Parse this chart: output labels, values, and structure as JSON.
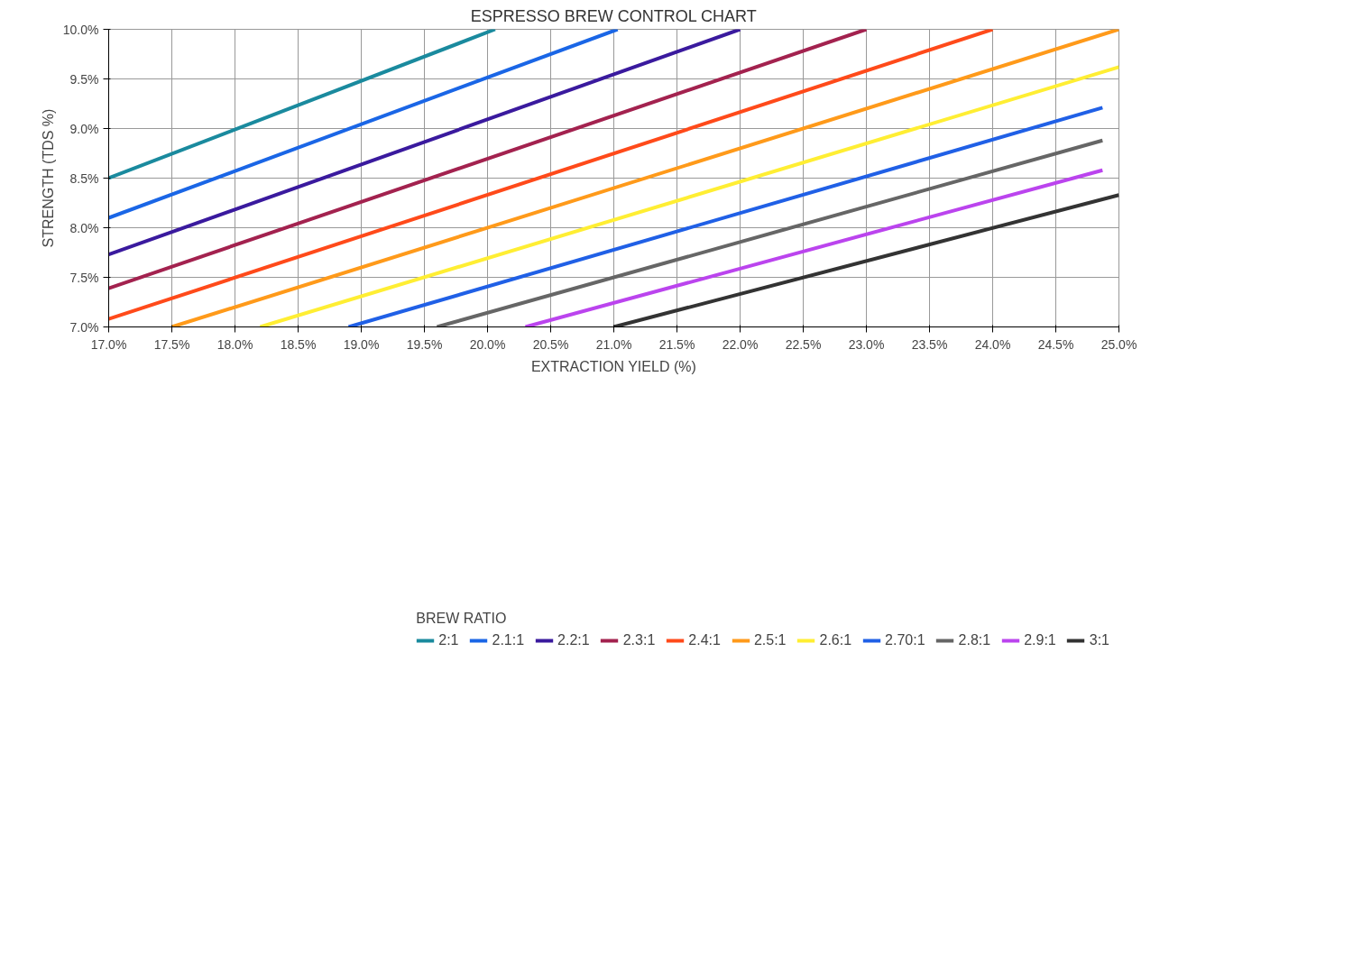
{
  "chart_data": {
    "type": "line",
    "title": "ESPRESSO BREW CONTROL CHART",
    "xlabel": "EXTRACTION YIELD (%)",
    "ylabel": "STRENGTH (TDS %)",
    "legend_title": "BREW RATIO",
    "legend": "bottom",
    "grid": true,
    "marker": "none",
    "line_style": "solid",
    "xlim": [
      17,
      25
    ],
    "ylim": [
      7,
      10
    ],
    "xticks": [
      {
        "value": 17,
        "label": "17.0%"
      },
      {
        "value": 17.5,
        "label": "17.5%"
      },
      {
        "value": 18,
        "label": "18.0%"
      },
      {
        "value": 18.5,
        "label": "18.5%"
      },
      {
        "value": 19,
        "label": "19.0%"
      },
      {
        "value": 19.5,
        "label": "19.5%"
      },
      {
        "value": 20,
        "label": "20.0%"
      },
      {
        "value": 20.5,
        "label": "20.5%"
      },
      {
        "value": 21,
        "label": "21.0%"
      },
      {
        "value": 21.5,
        "label": "21.5%"
      },
      {
        "value": 22,
        "label": "22.0%"
      },
      {
        "value": 22.5,
        "label": "22.5%"
      },
      {
        "value": 23,
        "label": "23.0%"
      },
      {
        "value": 23.5,
        "label": "23.5%"
      },
      {
        "value": 24,
        "label": "24.0%"
      },
      {
        "value": 24.5,
        "label": "24.5%"
      },
      {
        "value": 25,
        "label": "25.0%"
      }
    ],
    "yticks": [
      {
        "value": 7,
        "label": "7.0%"
      },
      {
        "value": 7.5,
        "label": "7.5%"
      },
      {
        "value": 8,
        "label": "8.0%"
      },
      {
        "value": 8.5,
        "label": "8.5%"
      },
      {
        "value": 9,
        "label": "9.0%"
      },
      {
        "value": 9.5,
        "label": "9.5%"
      },
      {
        "value": 10,
        "label": "10.0%"
      }
    ],
    "series": [
      {
        "name": "2:1",
        "color": "#1a8a9e",
        "x": [
          17,
          20.06
        ],
        "values": [
          8.5,
          10
        ]
      },
      {
        "name": "2.1:1",
        "color": "#1a66e6",
        "x": [
          17,
          21.03
        ],
        "values": [
          8.1,
          10
        ]
      },
      {
        "name": "2.2:1",
        "color": "#3a1a9e",
        "x": [
          17,
          22
        ],
        "values": [
          7.73,
          10
        ]
      },
      {
        "name": "2.3:1",
        "color": "#a3224f",
        "x": [
          17,
          23
        ],
        "values": [
          7.39,
          10
        ]
      },
      {
        "name": "2.4:1",
        "color": "#ff4a1a",
        "x": [
          17,
          24
        ],
        "values": [
          7.08,
          10
        ]
      },
      {
        "name": "2.5:1",
        "color": "#ff9a1a",
        "x": [
          17.5,
          25
        ],
        "values": [
          7,
          10
        ]
      },
      {
        "name": "2.6:1",
        "color": "#ffee33",
        "x": [
          18.2,
          25
        ],
        "values": [
          7,
          9.62
        ]
      },
      {
        "name": "2.70:1",
        "color": "#2060e6",
        "x": [
          18.9,
          24.87
        ],
        "values": [
          7,
          9.21
        ]
      },
      {
        "name": "2.8:1",
        "color": "#666666",
        "x": [
          19.6,
          24.87
        ],
        "values": [
          7,
          8.88
        ]
      },
      {
        "name": "2.9:1",
        "color": "#bb44ee",
        "x": [
          20.3,
          24.87
        ],
        "values": [
          7,
          8.58
        ]
      },
      {
        "name": "3:1",
        "color": "#333333",
        "x": [
          21,
          25
        ],
        "values": [
          7,
          8.33
        ]
      }
    ]
  }
}
